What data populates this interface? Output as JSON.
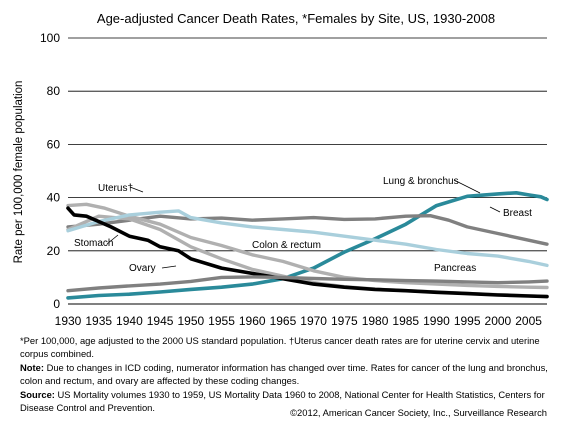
{
  "chart_data": {
    "type": "line",
    "title": "Age-adjusted Cancer Death Rates, *Females by Site, US, 1930-2008",
    "xlabel": "",
    "ylabel": "Rate per 100,000 female population",
    "xlim": [
      1930,
      2008
    ],
    "ylim": [
      0,
      100
    ],
    "x_ticks": [
      1930,
      1935,
      1940,
      1945,
      1950,
      1955,
      1960,
      1965,
      1970,
      1975,
      1980,
      1985,
      1990,
      1995,
      2000,
      2005
    ],
    "y_ticks": [
      0,
      20,
      40,
      60,
      80,
      100
    ],
    "grid": "horizontal",
    "series": [
      {
        "name": "Lung & bronchus",
        "color": "#2a8a9a",
        "points": [
          [
            1930,
            2.3
          ],
          [
            1935,
            3.2
          ],
          [
            1940,
            3.7
          ],
          [
            1945,
            4.5
          ],
          [
            1950,
            5.5
          ],
          [
            1955,
            6.3
          ],
          [
            1960,
            7.5
          ],
          [
            1965,
            9.5
          ],
          [
            1970,
            13.5
          ],
          [
            1975,
            19.5
          ],
          [
            1980,
            24.5
          ],
          [
            1985,
            30
          ],
          [
            1990,
            37
          ],
          [
            1995,
            40.5
          ],
          [
            2000,
            41.4
          ],
          [
            2003,
            41.8
          ],
          [
            2005,
            41
          ],
          [
            2007,
            40.3
          ],
          [
            2008,
            39.3
          ]
        ]
      },
      {
        "name": "Breast",
        "color": "#808080",
        "points": [
          [
            1930,
            29
          ],
          [
            1935,
            30
          ],
          [
            1940,
            31.5
          ],
          [
            1945,
            33
          ],
          [
            1950,
            32
          ],
          [
            1955,
            32.3
          ],
          [
            1960,
            31.5
          ],
          [
            1965,
            32
          ],
          [
            1970,
            32.5
          ],
          [
            1975,
            31.8
          ],
          [
            1980,
            32
          ],
          [
            1985,
            33
          ],
          [
            1989,
            33.2
          ],
          [
            1992,
            31.5
          ],
          [
            1995,
            29
          ],
          [
            2000,
            26.5
          ],
          [
            2005,
            24
          ],
          [
            2008,
            22.5
          ]
        ]
      },
      {
        "name": "Uterus†",
        "color": "#b0b0b0",
        "points": [
          [
            1930,
            37
          ],
          [
            1933,
            37.5
          ],
          [
            1936,
            36
          ],
          [
            1940,
            33
          ],
          [
            1945,
            30
          ],
          [
            1950,
            25
          ],
          [
            1955,
            22
          ],
          [
            1960,
            18.5
          ],
          [
            1965,
            16
          ],
          [
            1970,
            12.5
          ],
          [
            1975,
            10
          ],
          [
            1980,
            8.8
          ],
          [
            1985,
            8
          ],
          [
            1990,
            7.5
          ],
          [
            1995,
            7
          ],
          [
            2000,
            6.6
          ],
          [
            2005,
            6.3
          ],
          [
            2008,
            6.2
          ]
        ]
      },
      {
        "name": "Stomach",
        "color": "#b0b0b0",
        "points": [
          [
            1930,
            28
          ],
          [
            1932,
            30
          ],
          [
            1935,
            33
          ],
          [
            1940,
            32
          ],
          [
            1945,
            28
          ],
          [
            1950,
            21.5
          ],
          [
            1955,
            17
          ],
          [
            1960,
            13
          ],
          [
            1965,
            10.5
          ],
          [
            1970,
            8
          ],
          [
            1975,
            6.5
          ],
          [
            1980,
            5.6
          ],
          [
            1985,
            5
          ],
          [
            1990,
            4.5
          ],
          [
            1995,
            4
          ],
          [
            2000,
            3.5
          ],
          [
            2005,
            3.1
          ],
          [
            2008,
            2.8
          ]
        ]
      },
      {
        "name": "Colon & rectum",
        "color": "#a9cfdc",
        "points": [
          [
            1930,
            27.5
          ],
          [
            1935,
            31
          ],
          [
            1940,
            33.5
          ],
          [
            1945,
            34.5
          ],
          [
            1948,
            35
          ],
          [
            1950,
            32.5
          ],
          [
            1955,
            30.5
          ],
          [
            1960,
            29
          ],
          [
            1965,
            28
          ],
          [
            1970,
            27
          ],
          [
            1975,
            25.5
          ],
          [
            1980,
            24
          ],
          [
            1985,
            22.5
          ],
          [
            1990,
            20.5
          ],
          [
            1995,
            19
          ],
          [
            2000,
            18
          ],
          [
            2005,
            16
          ],
          [
            2008,
            14.5
          ]
        ]
      },
      {
        "name": "Ovary",
        "color": "#000000",
        "points": [
          [
            1930,
            36
          ],
          [
            1931,
            33.5
          ],
          [
            1933,
            33
          ],
          [
            1935,
            31
          ],
          [
            1937,
            29
          ],
          [
            1940,
            25.5
          ],
          [
            1943,
            24
          ],
          [
            1945,
            21.5
          ],
          [
            1948,
            20
          ],
          [
            1950,
            17
          ],
          [
            1955,
            13.5
          ],
          [
            1960,
            11.5
          ],
          [
            1965,
            9.5
          ],
          [
            1970,
            7.5
          ],
          [
            1975,
            6.3
          ],
          [
            1980,
            5.5
          ],
          [
            1985,
            5
          ],
          [
            1990,
            4.4
          ],
          [
            1995,
            3.9
          ],
          [
            2000,
            3.4
          ],
          [
            2005,
            3
          ],
          [
            2008,
            2.8
          ]
        ]
      },
      {
        "name": "Pancreas",
        "color": "#808080",
        "points": [
          [
            1930,
            5
          ],
          [
            1935,
            6
          ],
          [
            1940,
            6.8
          ],
          [
            1945,
            7.5
          ],
          [
            1950,
            8.5
          ],
          [
            1955,
            10
          ],
          [
            1960,
            10.2
          ],
          [
            1965,
            10
          ],
          [
            1970,
            9.6
          ],
          [
            1975,
            9.3
          ],
          [
            1980,
            9.1
          ],
          [
            1985,
            8.8
          ],
          [
            1990,
            8.6
          ],
          [
            1995,
            8.3
          ],
          [
            2000,
            8
          ],
          [
            2005,
            8.3
          ],
          [
            2008,
            8.6
          ]
        ]
      }
    ],
    "annotations": [
      {
        "label": "Uterus†",
        "series": 2
      },
      {
        "label": "Stomach",
        "series": 3
      },
      {
        "label": "Ovary",
        "series": 5
      },
      {
        "label": "Colon & rectum",
        "series": 4
      },
      {
        "label": "Lung & bronchus",
        "series": 0
      },
      {
        "label": "Breast",
        "series": 1
      },
      {
        "label": "Pancreas",
        "series": 6
      }
    ]
  },
  "footnotes": {
    "note1": "*Per 100,000, age adjusted to the 2000 US standard population. †Uterus cancer death rates are for uterine cervix and uterine corpus combined.",
    "note_label": "Note:",
    "note_text": " Due to changes in ICD coding, numerator information has changed over time. Rates for cancer of the lung and bronchus, colon and rectum, and ovary are affected by these coding changes.",
    "source_label": "Source:",
    "source_text": " US Mortality volumes 1930 to 1959, US Mortality Data 1960 to 2008, National Center for Health Statistics, Centers for Disease Control and Prevention.",
    "copyright": "©2012, American Cancer Society, Inc., Surveillance Research"
  }
}
